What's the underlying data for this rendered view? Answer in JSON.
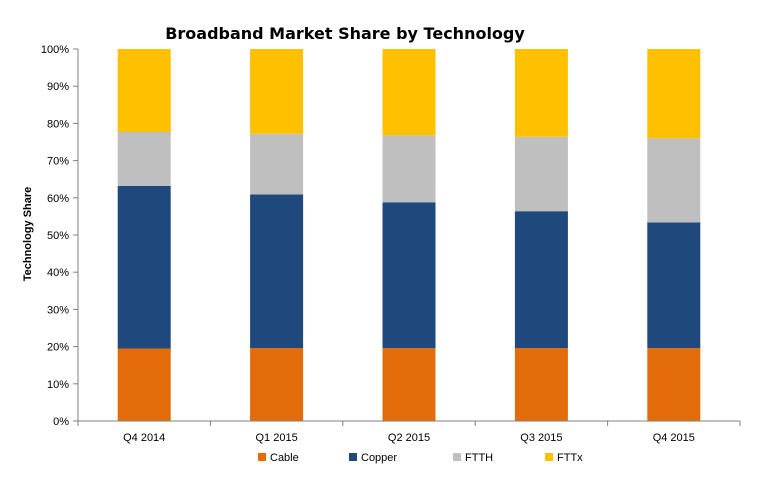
{
  "chart_data": {
    "type": "bar",
    "stacked": true,
    "title": "Broadband Market Share by Technology",
    "xlabel": "",
    "ylabel": "Technology Share",
    "ylim": [
      0,
      100
    ],
    "yticks": [
      "0%",
      "10%",
      "20%",
      "30%",
      "40%",
      "50%",
      "60%",
      "70%",
      "80%",
      "90%",
      "100%"
    ],
    "categories": [
      "Q4 2014",
      "Q1 2015",
      "Q2 2015",
      "Q3 2015",
      "Q4 2015"
    ],
    "series": [
      {
        "name": "Cable",
        "color": "#E36C0A",
        "values": [
          19.5,
          19.6,
          19.6,
          19.6,
          19.6
        ]
      },
      {
        "name": "Copper",
        "color": "#1F497D",
        "values": [
          43.7,
          41.3,
          39.2,
          36.8,
          33.8
        ]
      },
      {
        "name": "FTTH",
        "color": "#BFBFBF",
        "values": [
          14.5,
          16.3,
          18.0,
          20.0,
          22.6
        ]
      },
      {
        "name": "FTTx",
        "color": "#FFC000",
        "values": [
          22.3,
          22.8,
          23.2,
          23.6,
          24.0
        ]
      }
    ],
    "legend_position": "bottom",
    "grid": false
  }
}
